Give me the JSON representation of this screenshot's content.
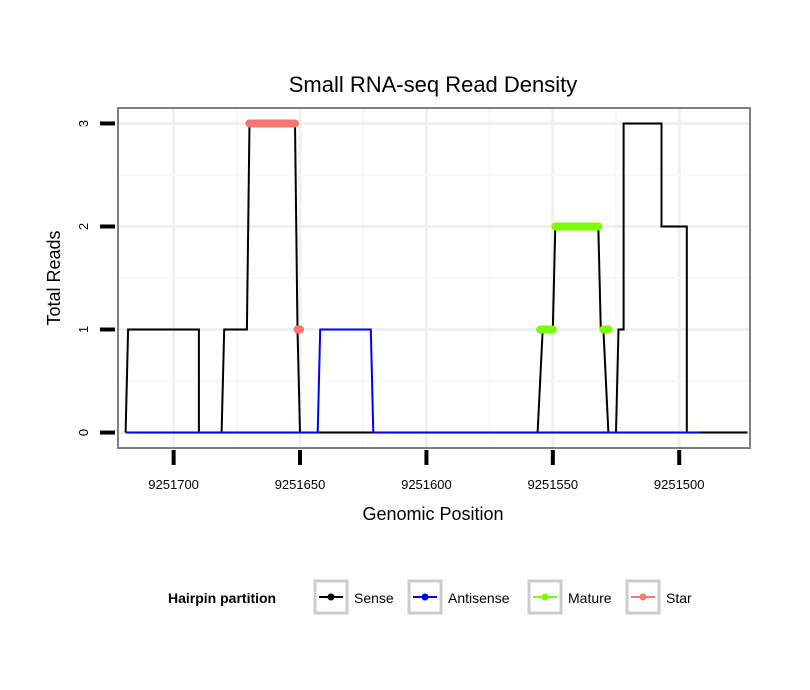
{
  "chart_data": {
    "type": "line",
    "title": "Small RNA-seq Read Density",
    "xlabel": "Genomic Position",
    "ylabel": "Total Reads",
    "xlim": [
      9251722,
      9251472
    ],
    "x_reversed": true,
    "ylim": [
      -0.15,
      3.15
    ],
    "x_ticks": [
      9251700,
      9251650,
      9251600,
      9251550,
      9251500
    ],
    "x_tick_labels": [
      "9251700",
      "9251650",
      "9251600",
      "9251550",
      "9251500"
    ],
    "y_ticks": [
      0,
      1,
      2,
      3
    ],
    "y_tick_labels": [
      "0",
      "1",
      "2",
      "3"
    ],
    "grid": true,
    "legend_position": "bottom",
    "legend_title": "Hairpin partition",
    "series": [
      {
        "name": "Sense",
        "color": "#000000",
        "style": "line",
        "x": [
          9251719,
          9251718,
          9251690,
          9251690,
          9251681,
          9251680,
          9251671,
          9251670,
          9251652,
          9251651,
          9251650,
          9251645,
          9251620,
          9251600,
          9251556,
          9251554,
          9251550,
          9251549,
          9251532,
          9251531,
          9251530,
          9251528,
          9251525,
          9251524,
          9251522,
          9251522,
          9251507,
          9251507,
          9251497,
          9251497,
          9251492,
          9251473
        ],
        "y": [
          0,
          1,
          1,
          0,
          0,
          1,
          1,
          3,
          3,
          1,
          0,
          0,
          0,
          0,
          0,
          1,
          1,
          2,
          2,
          1,
          1,
          0,
          0,
          1,
          1,
          3,
          3,
          2,
          2,
          0,
          0,
          0
        ]
      },
      {
        "name": "Antisense",
        "color": "#0000ff",
        "style": "line",
        "x": [
          9251719,
          9251643,
          9251642,
          9251622,
          9251621,
          9251492
        ],
        "y": [
          0,
          0,
          1,
          1,
          0,
          0
        ]
      },
      {
        "name": "Mature",
        "color": "#7cfc00",
        "style": "segments",
        "segments": [
          {
            "x": [
              9251555,
              9251550
            ],
            "y": 1
          },
          {
            "x": [
              9251549,
              9251532
            ],
            "y": 2
          },
          {
            "x": [
              9251530,
              9251528
            ],
            "y": 1
          }
        ]
      },
      {
        "name": "Star",
        "color": "#f8766d",
        "style": "segments",
        "segments": [
          {
            "x": [
              9251670,
              9251652
            ],
            "y": 3
          },
          {
            "x": [
              9251651,
              9251650
            ],
            "y": 1
          }
        ]
      }
    ]
  }
}
